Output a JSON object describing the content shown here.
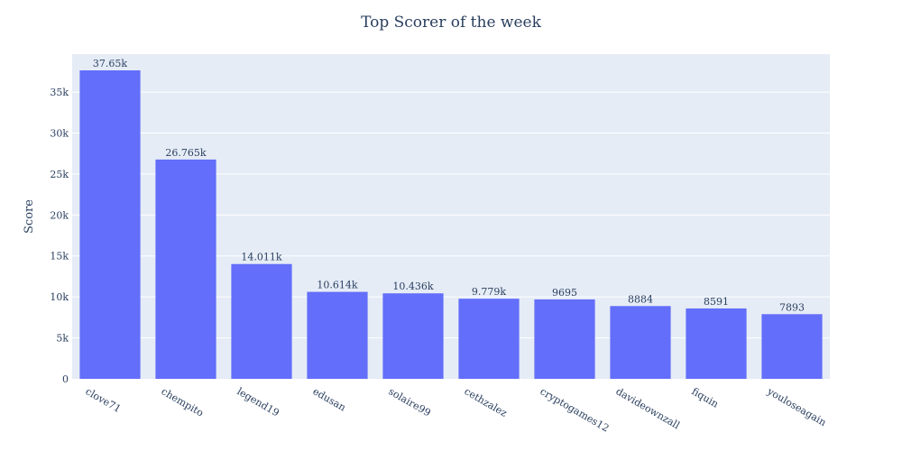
{
  "chart_data": {
    "type": "bar",
    "title": "Top Scorer of the week",
    "xlabel": "",
    "ylabel": "Score",
    "categories": [
      "clove71",
      "chempito",
      "legend19",
      "edusan",
      "solaire99",
      "cethzalez",
      "cryptogames12",
      "davideownzall",
      "fiquin",
      "youloseagain"
    ],
    "values": [
      37650,
      26765,
      14011,
      10614,
      10436,
      9779,
      9695,
      8884,
      8591,
      7893
    ],
    "data_labels": [
      "37.65k",
      "26.765k",
      "14.011k",
      "10.614k",
      "10.436k",
      "9.779k",
      "9695",
      "8884",
      "8591",
      "7893"
    ],
    "ylim": [
      0,
      39631
    ],
    "yticks": [
      0,
      5000,
      10000,
      15000,
      20000,
      25000,
      30000,
      35000
    ],
    "ytick_labels": [
      "0",
      "5k",
      "10k",
      "15k",
      "20k",
      "25k",
      "30k",
      "35k"
    ],
    "grid": true,
    "legend": "none",
    "colors": {
      "bar": "#636efa",
      "plot_bg": "#e5ecf6",
      "grid": "#ffffff",
      "text": "#2a3f5f",
      "paper_bg": "#ffffff"
    }
  }
}
